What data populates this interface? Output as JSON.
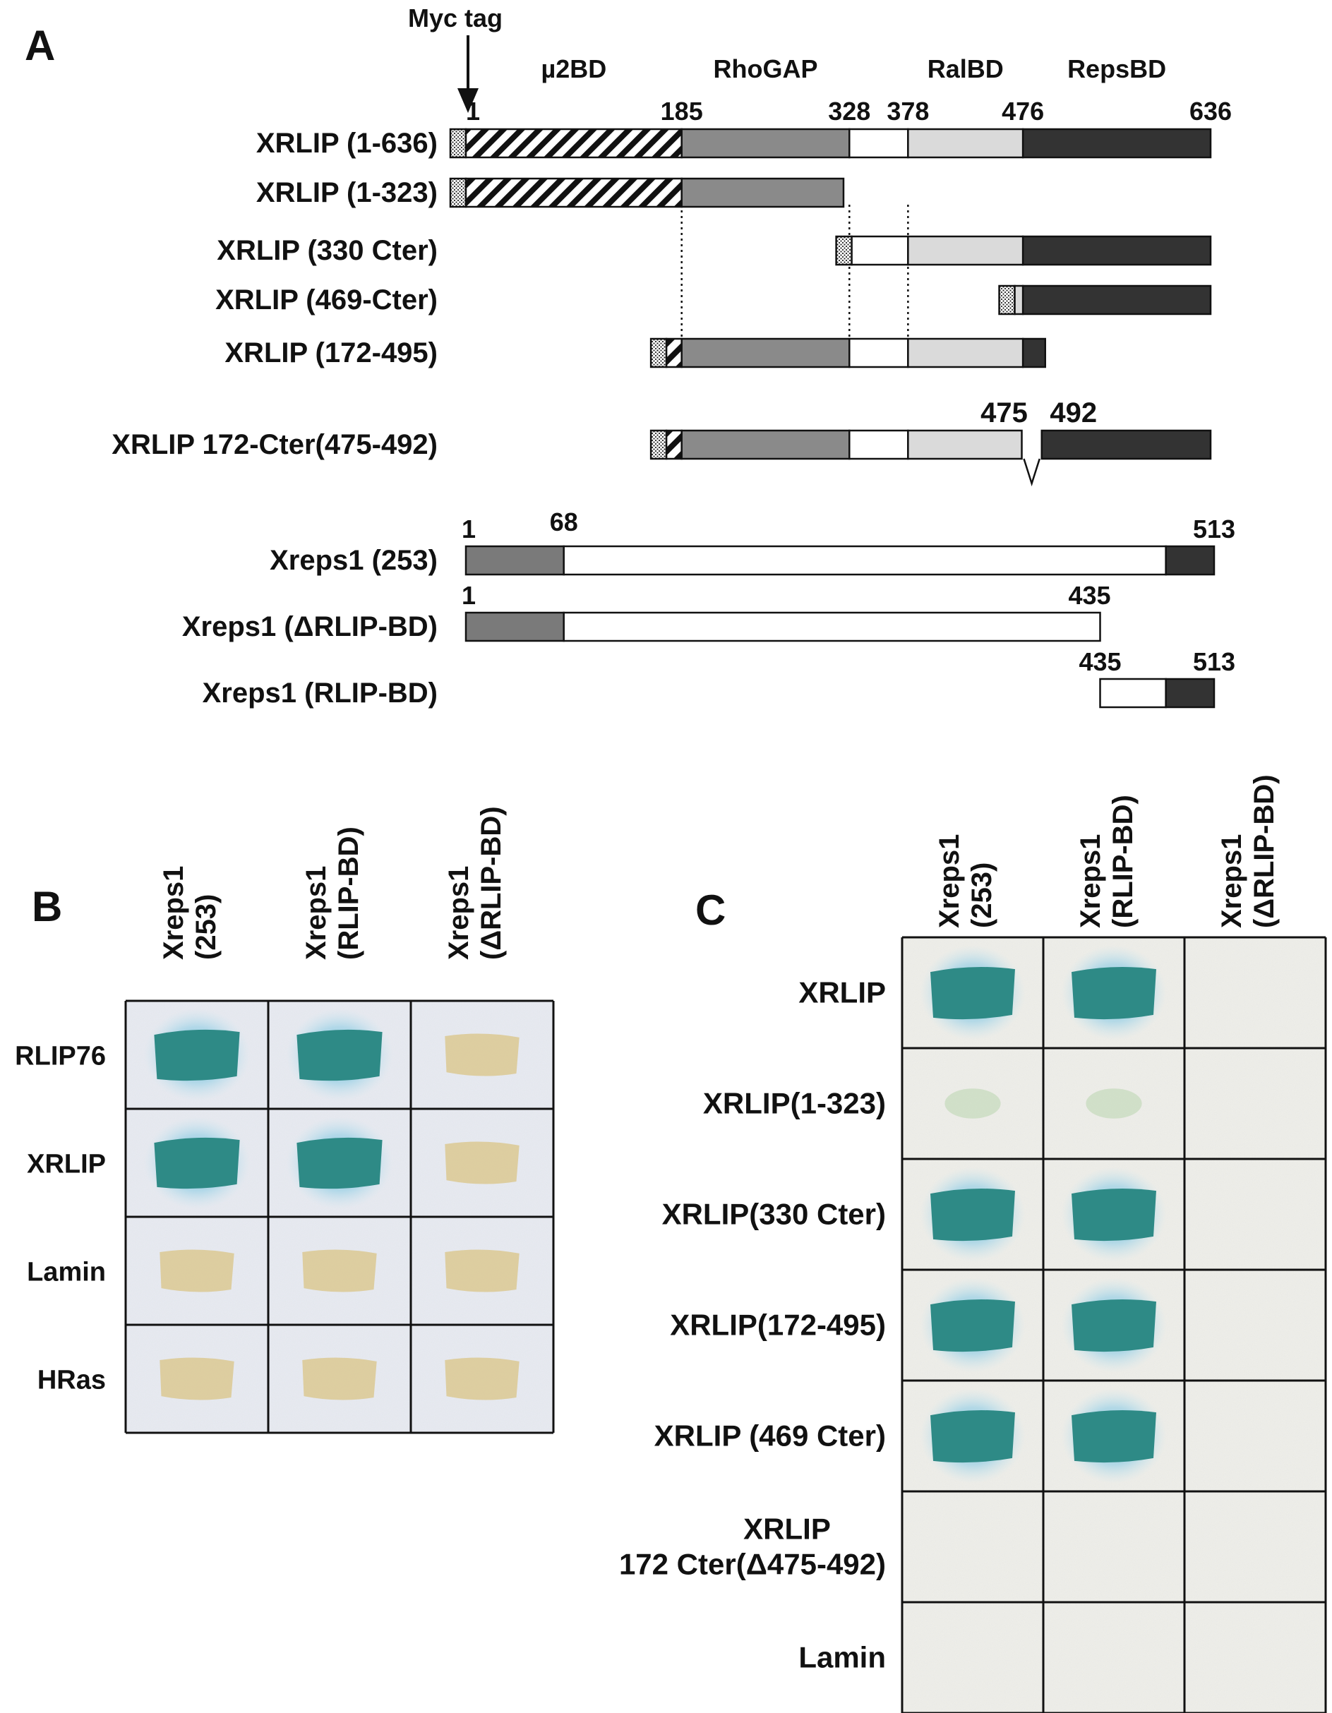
{
  "panel_a": {
    "letter": "A",
    "myc_tag": "Myc tag",
    "domains": [
      {
        "label": "µ2BD",
        "start": 1,
        "end": 185,
        "fill": "hatch"
      },
      {
        "label": "RhoGAP",
        "start": 185,
        "end": 328,
        "fill": "#8a8a8a"
      },
      {
        "label": "",
        "start": 328,
        "end": 378,
        "fill": "#ffffff"
      },
      {
        "label": "RalBD",
        "start": 378,
        "end": 476,
        "fill": "#dadada"
      },
      {
        "label": "RepsBD",
        "start": 476,
        "end": 636,
        "fill": "#333333"
      }
    ],
    "ticks": [
      "1",
      "185",
      "328",
      "378",
      "476",
      "636"
    ],
    "constructs": [
      {
        "label": "XRLIP (1-636)",
        "start": 1,
        "end": 636
      },
      {
        "label": "XRLIP (1-323)",
        "start": 1,
        "end": 323
      },
      {
        "label": "XRLIP (330 Cter)",
        "start": 330,
        "end": 636
      },
      {
        "label": "XRLIP (469-Cter)",
        "start": 469,
        "end": 636
      },
      {
        "label": "XRLIP (172-495)",
        "start": 172,
        "end": 495
      },
      {
        "label": "XRLIP 172-Cter(475-492)",
        "start": 172,
        "end": 636,
        "deletion": [
          "475",
          "492"
        ]
      }
    ],
    "xreps": [
      {
        "label": "Xreps1 (253)",
        "left_num": "1",
        "mid_num": "68",
        "right_num": "513",
        "segments": [
          {
            "start": 1,
            "end": 68,
            "fill": "#7a7a7a"
          },
          {
            "start": 68,
            "end": 480,
            "fill": "#ffffff"
          },
          {
            "start": 480,
            "end": 513,
            "fill": "#333333"
          }
        ]
      },
      {
        "label": "Xreps1 (ΔRLIP-BD)",
        "left_num": "1",
        "right_num": "435",
        "segments": [
          {
            "start": 1,
            "end": 68,
            "fill": "#7a7a7a"
          },
          {
            "start": 68,
            "end": 435,
            "fill": "#ffffff"
          }
        ]
      },
      {
        "label": "Xreps1 (RLIP-BD)",
        "left_num": "435",
        "right_num": "513",
        "segments": [
          {
            "start": 435,
            "end": 480,
            "fill": "#ffffff"
          },
          {
            "start": 480,
            "end": 513,
            "fill": "#333333"
          }
        ]
      }
    ]
  },
  "panel_b": {
    "letter": "B",
    "columns": [
      [
        "Xreps1",
        "(253)"
      ],
      [
        "Xreps1",
        "(RLIP-BD)"
      ],
      [
        "Xreps1",
        "(ΔRLIP-BD)"
      ]
    ],
    "rows": [
      {
        "label": "RLIP76",
        "spots": [
          "blue",
          "blue",
          "yellow"
        ]
      },
      {
        "label": "XRLIP",
        "spots": [
          "blue",
          "blue",
          "yellow"
        ]
      },
      {
        "label": "Lamin",
        "spots": [
          "yellow",
          "yellow",
          "yellow"
        ]
      },
      {
        "label": "HRas",
        "spots": [
          "yellow",
          "yellow",
          "yellow"
        ]
      }
    ]
  },
  "panel_c": {
    "letter": "C",
    "columns": [
      [
        "Xreps1",
        "(253)"
      ],
      [
        "Xreps1",
        "(RLIP-BD)"
      ],
      [
        "Xreps1",
        "(ΔRLIP-BD)"
      ]
    ],
    "rows": [
      {
        "label": [
          "XRLIP"
        ],
        "spots": [
          "blue",
          "blue",
          "none"
        ]
      },
      {
        "label": [
          "XRLIP(1-323)"
        ],
        "spots": [
          "faint",
          "faint",
          "none"
        ]
      },
      {
        "label": [
          "XRLIP(330 Cter)"
        ],
        "spots": [
          "blue",
          "blue",
          "none"
        ]
      },
      {
        "label": [
          "XRLIP(172-495)"
        ],
        "spots": [
          "blue",
          "blue",
          "none"
        ]
      },
      {
        "label": [
          "XRLIP (469 Cter)"
        ],
        "spots": [
          "blue",
          "blue",
          "none"
        ]
      },
      {
        "label": [
          "XRLIP",
          "172 Cter(Δ475-492)"
        ],
        "spots": [
          "none",
          "none",
          "none"
        ]
      },
      {
        "label": [
          "Lamin"
        ],
        "spots": [
          "none",
          "none",
          "none"
        ]
      }
    ]
  },
  "colors": {
    "blue_spot": "#2e8a86",
    "blue_halo": "#8ccbe0",
    "yellow_spot": "#d9c486",
    "membrane_b": "#e8ebf2",
    "membrane_c": "#efefea"
  }
}
